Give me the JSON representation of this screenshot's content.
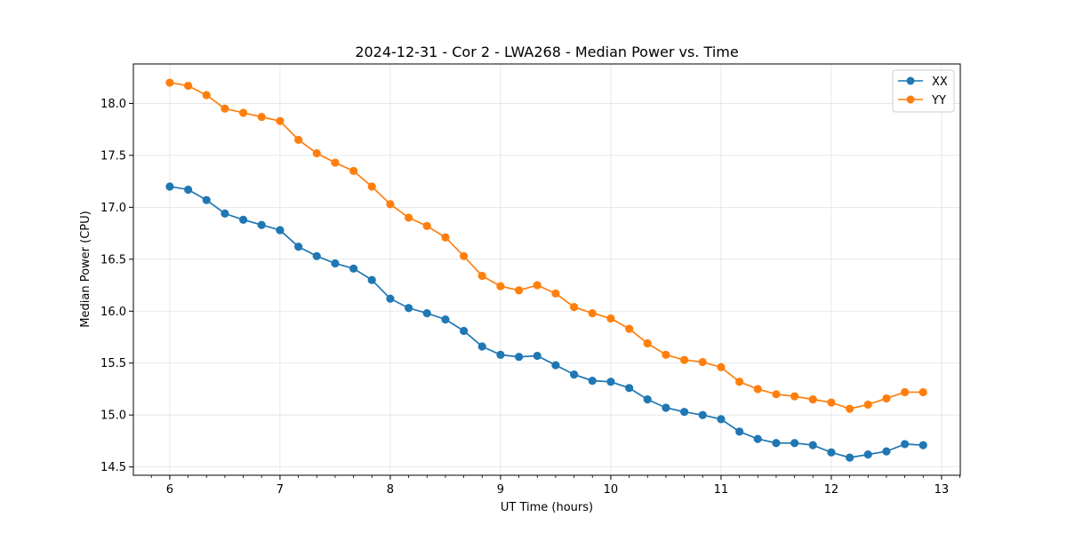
{
  "chart_data": {
    "type": "line",
    "title": "2024-12-31 - Cor 2 - LWA268 - Median Power vs. Time",
    "xlabel": "UT Time (hours)",
    "ylabel": "Median Power (CPU)",
    "xlim": [
      5.67,
      13.17
    ],
    "ylim": [
      14.42,
      18.38
    ],
    "grid": true,
    "legend_position": "top-right",
    "x_ticks": [
      6,
      7,
      8,
      9,
      10,
      11,
      12,
      13
    ],
    "x_tick_labels": [
      "6",
      "7",
      "8",
      "9",
      "10",
      "11",
      "12",
      "13"
    ],
    "y_ticks": [
      14.5,
      15.0,
      15.5,
      16.0,
      16.5,
      17.0,
      17.5,
      18.0
    ],
    "y_tick_labels": [
      "14.5",
      "15.0",
      "15.5",
      "16.0",
      "16.5",
      "17.0",
      "17.5",
      "18.0"
    ],
    "x": [
      6.0,
      6.167,
      6.333,
      6.5,
      6.667,
      6.833,
      7.0,
      7.167,
      7.333,
      7.5,
      7.667,
      7.833,
      8.0,
      8.167,
      8.333,
      8.5,
      8.667,
      8.833,
      9.0,
      9.167,
      9.333,
      9.5,
      9.667,
      9.833,
      10.0,
      10.167,
      10.333,
      10.5,
      10.667,
      10.833,
      11.0,
      11.167,
      11.333,
      11.5,
      11.667,
      11.833,
      12.0,
      12.167,
      12.333,
      12.5,
      12.667,
      12.833
    ],
    "series": [
      {
        "name": "XX",
        "color": "#1f77b4",
        "values": [
          17.2,
          17.17,
          17.07,
          16.94,
          16.88,
          16.83,
          16.78,
          16.62,
          16.53,
          16.46,
          16.41,
          16.3,
          16.12,
          16.03,
          15.98,
          15.92,
          15.81,
          15.66,
          15.58,
          15.56,
          15.57,
          15.48,
          15.39,
          15.33,
          15.32,
          15.26,
          15.15,
          15.07,
          15.03,
          15.0,
          14.96,
          14.84,
          14.77,
          14.73,
          14.73,
          14.71,
          14.64,
          14.59,
          14.62,
          14.65,
          14.72,
          14.71
        ]
      },
      {
        "name": "YY",
        "color": "#ff7f0e",
        "values": [
          18.2,
          18.17,
          18.08,
          17.95,
          17.91,
          17.87,
          17.83,
          17.65,
          17.52,
          17.43,
          17.35,
          17.2,
          17.03,
          16.9,
          16.82,
          16.71,
          16.53,
          16.34,
          16.24,
          16.2,
          16.25,
          16.17,
          16.04,
          15.98,
          15.93,
          15.83,
          15.69,
          15.58,
          15.53,
          15.51,
          15.46,
          15.32,
          15.25,
          15.2,
          15.18,
          15.15,
          15.12,
          15.06,
          15.1,
          15.16,
          15.22,
          15.22
        ]
      }
    ]
  }
}
